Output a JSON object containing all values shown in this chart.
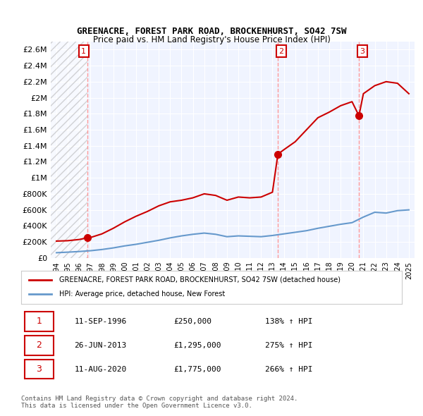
{
  "title": "GREENACRE, FOREST PARK ROAD, BROCKENHURST, SO42 7SW",
  "subtitle": "Price paid vs. HM Land Registry's House Price Index (HPI)",
  "sale_dates": [
    1996.7,
    2013.48,
    2020.61
  ],
  "sale_prices": [
    250000,
    1295000,
    1775000
  ],
  "sale_labels": [
    "1",
    "2",
    "3"
  ],
  "red_line_x": [
    1994,
    1995,
    1996,
    1996.7,
    1997,
    1998,
    1999,
    2000,
    2001,
    2002,
    2003,
    2004,
    2005,
    2006,
    2007,
    2008,
    2009,
    2010,
    2011,
    2012,
    2013,
    2013.48,
    2014,
    2015,
    2016,
    2017,
    2018,
    2019,
    2020,
    2020.61,
    2021,
    2022,
    2023,
    2024,
    2025
  ],
  "red_line_y": [
    210000,
    215000,
    230000,
    250000,
    255000,
    300000,
    370000,
    450000,
    520000,
    580000,
    650000,
    700000,
    720000,
    750000,
    800000,
    780000,
    720000,
    760000,
    750000,
    760000,
    820000,
    1295000,
    1350000,
    1450000,
    1600000,
    1750000,
    1820000,
    1900000,
    1950000,
    1775000,
    2050000,
    2150000,
    2200000,
    2180000,
    2050000
  ],
  "blue_line_x": [
    1994,
    1995,
    1996,
    1997,
    1998,
    1999,
    2000,
    2001,
    2002,
    2003,
    2004,
    2005,
    2006,
    2007,
    2008,
    2009,
    2010,
    2011,
    2012,
    2013,
    2014,
    2015,
    2016,
    2017,
    2018,
    2019,
    2020,
    2021,
    2022,
    2023,
    2024,
    2025
  ],
  "blue_line_y": [
    65000,
    72000,
    80000,
    90000,
    105000,
    125000,
    150000,
    170000,
    195000,
    220000,
    250000,
    275000,
    295000,
    310000,
    295000,
    265000,
    275000,
    270000,
    265000,
    280000,
    300000,
    320000,
    340000,
    370000,
    395000,
    420000,
    440000,
    510000,
    570000,
    560000,
    590000,
    600000
  ],
  "xlim": [
    1993.5,
    2025.5
  ],
  "ylim": [
    0,
    2700000
  ],
  "yticks": [
    0,
    200000,
    400000,
    600000,
    800000,
    1000000,
    1200000,
    1400000,
    1600000,
    1800000,
    2000000,
    2200000,
    2400000,
    2600000
  ],
  "ytick_labels": [
    "£0",
    "£200K",
    "£400K",
    "£600K",
    "£800K",
    "£1M",
    "£1.2M",
    "£1.4M",
    "£1.6M",
    "£1.8M",
    "£2M",
    "£2.2M",
    "£2.4M",
    "£2.6M"
  ],
  "xticks": [
    1994,
    1995,
    1996,
    1997,
    1998,
    1999,
    2000,
    2001,
    2002,
    2003,
    2004,
    2005,
    2006,
    2007,
    2008,
    2009,
    2010,
    2011,
    2012,
    2013,
    2014,
    2015,
    2016,
    2017,
    2018,
    2019,
    2020,
    2021,
    2022,
    2023,
    2024,
    2025
  ],
  "red_color": "#cc0000",
  "blue_color": "#6699cc",
  "dashed_color": "#ff9999",
  "hatch_color": "#cccccc",
  "table_rows": [
    [
      "1",
      "11-SEP-1996",
      "£250,000",
      "138% ↑ HPI"
    ],
    [
      "2",
      "26-JUN-2013",
      "£1,295,000",
      "275% ↑ HPI"
    ],
    [
      "3",
      "11-AUG-2020",
      "£1,775,000",
      "266% ↑ HPI"
    ]
  ],
  "footer": "Contains HM Land Registry data © Crown copyright and database right 2024.\nThis data is licensed under the Open Government Licence v3.0.",
  "legend_red": "GREENACRE, FOREST PARK ROAD, BROCKENHURST, SO42 7SW (detached house)",
  "legend_blue": "HPI: Average price, detached house, New Forest",
  "bg_color": "#ffffff",
  "plot_bg": "#f0f4ff",
  "hatch_region_end": 1996.7
}
